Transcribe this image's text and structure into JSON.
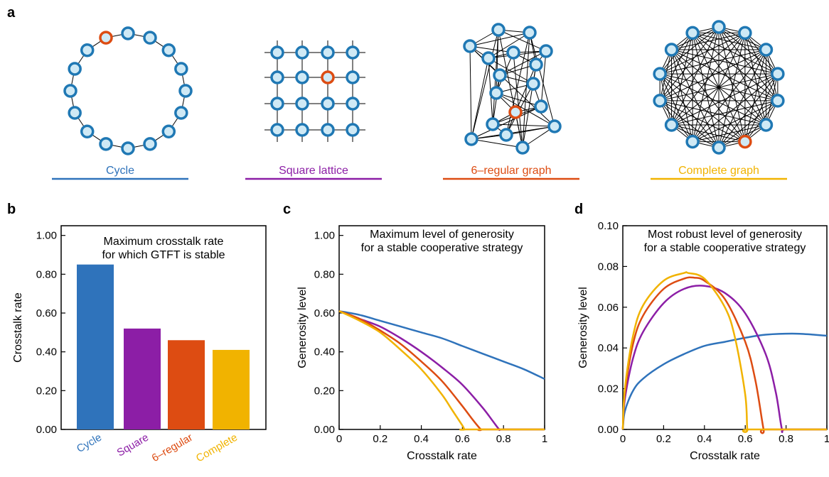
{
  "panels": {
    "a": "a",
    "b": "b",
    "c": "c",
    "d": "d"
  },
  "colors": {
    "cycle": "#2f73bb",
    "square": "#8c1ea6",
    "regular": "#dd4c12",
    "complete": "#f1b300",
    "node_stroke": "#1f78b4",
    "node_fill": "#cfe9f5",
    "highlight": "#dd4c12"
  },
  "networks": [
    {
      "id": "cycle",
      "label": "Cycle",
      "color": "#2f73bb"
    },
    {
      "id": "square",
      "label": "Square lattice",
      "color": "#8c1ea6"
    },
    {
      "id": "regular",
      "label": "6–regular graph",
      "color": "#dd4c12"
    },
    {
      "id": "complete",
      "label": "Complete graph",
      "color": "#f1b300"
    }
  ],
  "chart_data": [
    {
      "type": "bar",
      "panel": "b",
      "title_lines": [
        "Maximum crosstalk rate",
        "for which GTFT is stable"
      ],
      "ylabel": "Crosstalk rate",
      "xlabel": "",
      "categories": [
        "Cycle",
        "Square",
        "6–regular",
        "Complete"
      ],
      "values": [
        0.85,
        0.52,
        0.46,
        0.41
      ],
      "colors": [
        "#2f73bb",
        "#8c1ea6",
        "#dd4c12",
        "#f1b300"
      ],
      "ylim": [
        0,
        1.05
      ],
      "yticks": [
        "0.00",
        "0.20",
        "0.40",
        "0.60",
        "0.80",
        "1.00"
      ],
      "ytick_values": [
        0,
        0.2,
        0.4,
        0.6,
        0.8,
        1.0
      ]
    },
    {
      "type": "line",
      "panel": "c",
      "title_lines": [
        "Maximum level of generosity",
        "for a stable cooperative strategy"
      ],
      "xlabel": "Crosstalk rate",
      "ylabel": "Generosity level",
      "xlim": [
        0,
        1
      ],
      "ylim": [
        0,
        1.05
      ],
      "xticks": [
        "0",
        "0.2",
        "0.4",
        "0.6",
        "0.8",
        "1"
      ],
      "xtick_values": [
        0,
        0.2,
        0.4,
        0.6,
        0.8,
        1
      ],
      "yticks": [
        "0.00",
        "0.20",
        "0.40",
        "0.60",
        "0.80",
        "1.00"
      ],
      "ytick_values": [
        0,
        0.2,
        0.4,
        0.6,
        0.8,
        1.0
      ],
      "series": [
        {
          "color": "#2f73bb",
          "x": [
            0,
            0.1,
            0.2,
            0.3,
            0.4,
            0.5,
            0.6,
            0.7,
            0.8,
            0.9,
            1.0
          ],
          "y": [
            0.61,
            0.59,
            0.56,
            0.53,
            0.5,
            0.47,
            0.43,
            0.39,
            0.35,
            0.31,
            0.26
          ]
        },
        {
          "color": "#8c1ea6",
          "x": [
            0,
            0.1,
            0.2,
            0.3,
            0.4,
            0.5,
            0.6,
            0.7,
            0.75,
            0.78,
            0.8,
            1.0
          ],
          "y": [
            0.61,
            0.57,
            0.53,
            0.47,
            0.4,
            0.32,
            0.23,
            0.11,
            0.04,
            0,
            0,
            0
          ]
        },
        {
          "color": "#dd4c12",
          "x": [
            0,
            0.1,
            0.2,
            0.3,
            0.4,
            0.5,
            0.6,
            0.65,
            0.69,
            0.7,
            1.0
          ],
          "y": [
            0.61,
            0.57,
            0.51,
            0.44,
            0.35,
            0.25,
            0.12,
            0.05,
            0,
            0,
            0
          ]
        },
        {
          "color": "#f1b300",
          "x": [
            0,
            0.1,
            0.2,
            0.3,
            0.4,
            0.5,
            0.55,
            0.6,
            0.61,
            0.62,
            1.0
          ],
          "y": [
            0.61,
            0.56,
            0.5,
            0.41,
            0.31,
            0.18,
            0.1,
            0.02,
            0,
            0,
            0
          ]
        }
      ]
    },
    {
      "type": "line",
      "panel": "d",
      "title_lines": [
        "Most robust level of generosity",
        "for a stable cooperative strategy"
      ],
      "xlabel": "Crosstalk rate",
      "ylabel": "Generosity level",
      "xlim": [
        0,
        1
      ],
      "ylim": [
        0,
        0.1
      ],
      "xticks": [
        "0",
        "0.2",
        "0.4",
        "0.6",
        "0.8",
        "1"
      ],
      "xtick_values": [
        0,
        0.2,
        0.4,
        0.6,
        0.8,
        1
      ],
      "yticks": [
        "0.00",
        "0.02",
        "0.04",
        "0.06",
        "0.08",
        "0.10"
      ],
      "ytick_values": [
        0,
        0.02,
        0.04,
        0.06,
        0.08,
        0.1
      ],
      "series": [
        {
          "color": "#2f73bb",
          "x": [
            0,
            0.01,
            0.05,
            0.1,
            0.2,
            0.3,
            0.4,
            0.5,
            0.6,
            0.7,
            0.85,
            1.0
          ],
          "y": [
            0,
            0.009,
            0.019,
            0.025,
            0.032,
            0.037,
            0.041,
            0.043,
            0.045,
            0.0465,
            0.047,
            0.046
          ]
        },
        {
          "color": "#8c1ea6",
          "x": [
            0,
            0.01,
            0.05,
            0.1,
            0.2,
            0.3,
            0.4,
            0.5,
            0.6,
            0.7,
            0.75,
            0.78,
            0.8,
            1.0
          ],
          "y": [
            0,
            0.015,
            0.035,
            0.048,
            0.062,
            0.069,
            0.0705,
            0.067,
            0.057,
            0.037,
            0.018,
            0,
            0,
            0
          ]
        },
        {
          "color": "#dd4c12",
          "x": [
            0,
            0.01,
            0.05,
            0.1,
            0.2,
            0.3,
            0.35,
            0.4,
            0.5,
            0.6,
            0.65,
            0.69,
            0.7,
            1.0
          ],
          "y": [
            0,
            0.018,
            0.042,
            0.056,
            0.069,
            0.074,
            0.0745,
            0.073,
            0.064,
            0.043,
            0.024,
            0,
            0,
            0
          ]
        },
        {
          "color": "#f1b300",
          "x": [
            0,
            0.01,
            0.05,
            0.1,
            0.2,
            0.3,
            0.32,
            0.4,
            0.5,
            0.55,
            0.6,
            0.61,
            0.62,
            1.0
          ],
          "y": [
            0,
            0.02,
            0.046,
            0.061,
            0.073,
            0.0768,
            0.0768,
            0.074,
            0.06,
            0.045,
            0.017,
            0,
            0,
            0
          ]
        }
      ]
    }
  ]
}
